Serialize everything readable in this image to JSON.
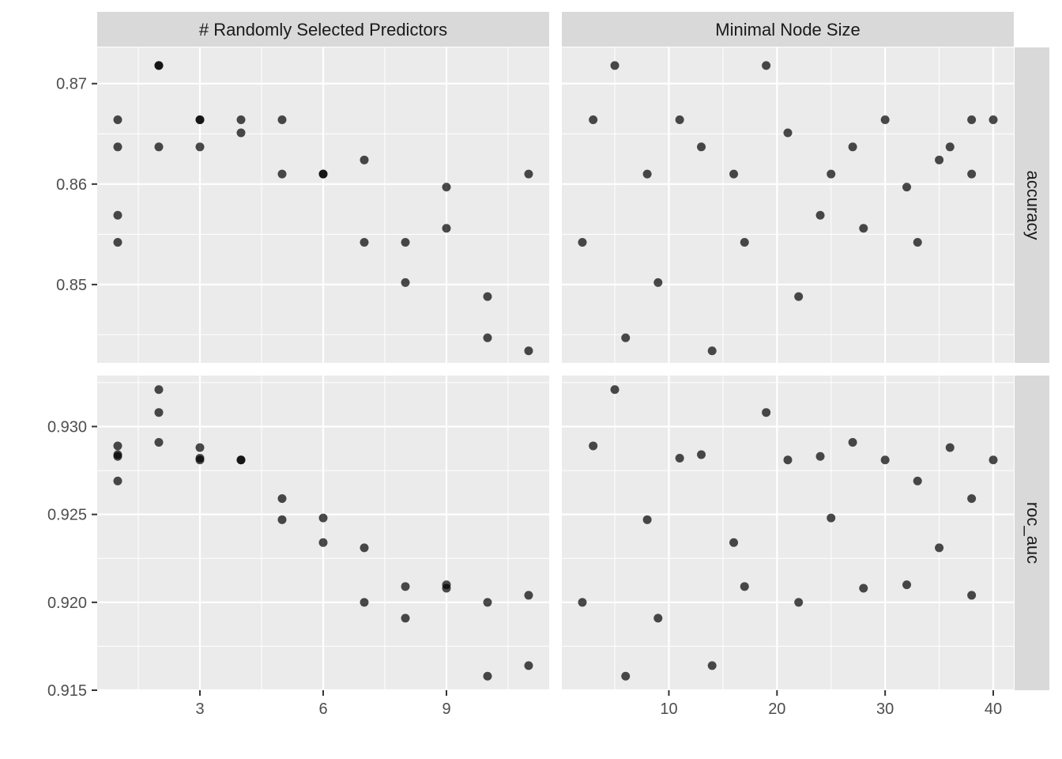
{
  "chart_data": {
    "type": "scatter",
    "facet_columns": [
      "# Randomly Selected Predictors",
      "Minimal Node Size"
    ],
    "facet_rows": [
      "accuracy",
      "roc_auc"
    ],
    "xlim": {
      "# Randomly Selected Predictors": [
        0.5,
        11.5
      ],
      "Minimal Node Size": [
        0.1,
        41.9
      ]
    },
    "xticks": {
      "# Randomly Selected Predictors": [
        3,
        6,
        9
      ],
      "Minimal Node Size": [
        10,
        20,
        30,
        40
      ]
    },
    "ylim": {
      "accuracy": [
        0.8422,
        0.8736
      ],
      "roc_auc": [
        0.915,
        0.9329
      ]
    },
    "yticks": {
      "accuracy": [
        "0.850",
        "0.860",
        "0.870"
      ],
      "roc_auc": [
        "0.915",
        "0.920",
        "0.925",
        "0.930"
      ]
    },
    "ytick_labels": {
      "accuracy": [
        "0.85",
        "0.86",
        "0.87"
      ],
      "roc_auc": [
        "0.915",
        "0.920",
        "0.925",
        "0.930"
      ]
    },
    "x_tick_labels": {
      "# Randomly Selected Predictors": [
        "3",
        "6",
        "9"
      ],
      "Minimal Node Size": [
        "10",
        "20",
        "30",
        "40"
      ]
    },
    "grid": true,
    "point_color": "#000000",
    "point_alpha": 0.7,
    "panel_background": "#ebebeb",
    "strip_background": "#d9d9d9",
    "configs": [
      {
        "mtry": 1,
        "min_n": 3,
        "accuracy": 0.8664,
        "roc_auc": 0.9289
      },
      {
        "mtry": 1,
        "min_n": 24,
        "accuracy": 0.8569,
        "roc_auc": 0.9283
      },
      {
        "mtry": 1,
        "min_n": 33,
        "accuracy": 0.8542,
        "roc_auc": 0.9269
      },
      {
        "mtry": 1,
        "min_n": 13,
        "accuracy": 0.8637,
        "roc_auc": 0.9284
      },
      {
        "mtry": 2,
        "min_n": 5,
        "accuracy": 0.8718,
        "roc_auc": 0.9321
      },
      {
        "mtry": 2,
        "min_n": 19,
        "accuracy": 0.8718,
        "roc_auc": 0.9308
      },
      {
        "mtry": 2,
        "min_n": 27,
        "accuracy": 0.8637,
        "roc_auc": 0.9291
      },
      {
        "mtry": 3,
        "min_n": 11,
        "accuracy": 0.8664,
        "roc_auc": 0.9282
      },
      {
        "mtry": 3,
        "min_n": 30,
        "accuracy": 0.8664,
        "roc_auc": 0.9281
      },
      {
        "mtry": 3,
        "min_n": 36,
        "accuracy": 0.8637,
        "roc_auc": 0.9288
      },
      {
        "mtry": 4,
        "min_n": 40,
        "accuracy": 0.8664,
        "roc_auc": 0.9281
      },
      {
        "mtry": 4,
        "min_n": 21,
        "accuracy": 0.8651,
        "roc_auc": 0.9281
      },
      {
        "mtry": 5,
        "min_n": 38,
        "accuracy": 0.8664,
        "roc_auc": 0.9259
      },
      {
        "mtry": 5,
        "min_n": 8,
        "accuracy": 0.861,
        "roc_auc": 0.9247
      },
      {
        "mtry": 6,
        "min_n": 25,
        "accuracy": 0.861,
        "roc_auc": 0.9248
      },
      {
        "mtry": 6,
        "min_n": 16,
        "accuracy": 0.861,
        "roc_auc": 0.9234
      },
      {
        "mtry": 7,
        "min_n": 35,
        "accuracy": 0.8624,
        "roc_auc": 0.9231
      },
      {
        "mtry": 7,
        "min_n": 2,
        "accuracy": 0.8542,
        "roc_auc": 0.92
      },
      {
        "mtry": 8,
        "min_n": 17,
        "accuracy": 0.8542,
        "roc_auc": 0.9209
      },
      {
        "mtry": 8,
        "min_n": 9,
        "accuracy": 0.8502,
        "roc_auc": 0.9191
      },
      {
        "mtry": 9,
        "min_n": 32,
        "accuracy": 0.8597,
        "roc_auc": 0.921
      },
      {
        "mtry": 9,
        "min_n": 28,
        "accuracy": 0.8556,
        "roc_auc": 0.9208
      },
      {
        "mtry": 10,
        "min_n": 22,
        "accuracy": 0.8488,
        "roc_auc": 0.92
      },
      {
        "mtry": 10,
        "min_n": 6,
        "accuracy": 0.8447,
        "roc_auc": 0.9158
      },
      {
        "mtry": 11,
        "min_n": 14,
        "accuracy": 0.8434,
        "roc_auc": 0.9164
      },
      {
        "mtry": 11,
        "min_n": 38,
        "accuracy": 0.861,
        "roc_auc": 0.9204
      }
    ]
  }
}
